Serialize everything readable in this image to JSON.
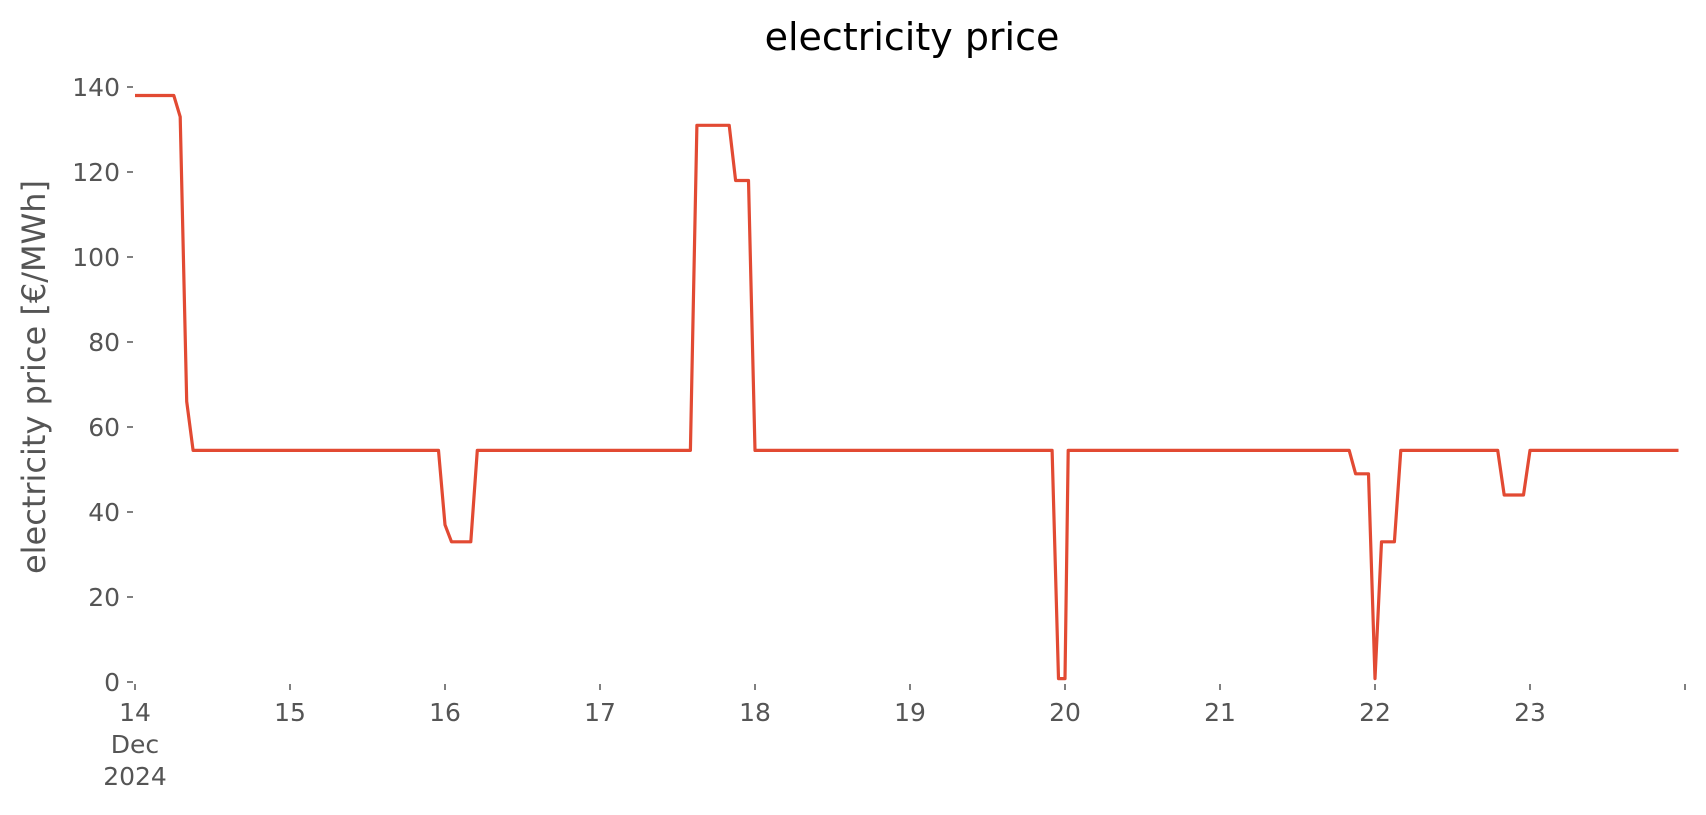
{
  "chart_data": {
    "type": "line",
    "title": "electricity price",
    "xlabel": "",
    "ylabel": "electricity price [€/MWh]",
    "xlim": [
      "2024-12-14 00:00",
      "2024-12-24 00:00"
    ],
    "ylim": [
      0,
      140
    ],
    "y_ticks": [
      0,
      20,
      40,
      60,
      80,
      100,
      120,
      140
    ],
    "x_tick_labels": [
      {
        "x": "2024-12-14 00:00",
        "lines": [
          "14",
          "Dec",
          "2024"
        ]
      },
      {
        "x": "2024-12-15 00:00",
        "lines": [
          "15"
        ]
      },
      {
        "x": "2024-12-16 00:00",
        "lines": [
          "16"
        ]
      },
      {
        "x": "2024-12-17 00:00",
        "lines": [
          "17"
        ]
      },
      {
        "x": "2024-12-18 00:00",
        "lines": [
          "18"
        ]
      },
      {
        "x": "2024-12-19 00:00",
        "lines": [
          "19"
        ]
      },
      {
        "x": "2024-12-20 00:00",
        "lines": [
          "20"
        ]
      },
      {
        "x": "2024-12-21 00:00",
        "lines": [
          "21"
        ]
      },
      {
        "x": "2024-12-22 00:00",
        "lines": [
          "22"
        ]
      },
      {
        "x": "2024-12-23 00:00",
        "lines": [
          "23"
        ]
      },
      {
        "x": "2024-12-24 00:00",
        "lines": [
          ""
        ]
      }
    ],
    "grid": false,
    "series": [
      {
        "color": "#E24A33",
        "points": [
          [
            "2024-12-14 00:00",
            138
          ],
          [
            "2024-12-14 06:00",
            138
          ],
          [
            "2024-12-14 07:00",
            133
          ],
          [
            "2024-12-14 08:00",
            66
          ],
          [
            "2024-12-14 09:00",
            54.5
          ],
          [
            "2024-12-15 23:00",
            54.5
          ],
          [
            "2024-12-16 00:00",
            37
          ],
          [
            "2024-12-16 01:00",
            33
          ],
          [
            "2024-12-16 04:00",
            33
          ],
          [
            "2024-12-16 05:00",
            54.5
          ],
          [
            "2024-12-17 14:00",
            54.5
          ],
          [
            "2024-12-17 15:00",
            131
          ],
          [
            "2024-12-17 20:00",
            131
          ],
          [
            "2024-12-17 21:00",
            118
          ],
          [
            "2024-12-17 23:00",
            118
          ],
          [
            "2024-12-18 00:00",
            54.5
          ],
          [
            "2024-12-19 22:00",
            54.5
          ],
          [
            "2024-12-19 23:00",
            0.8
          ],
          [
            "2024-12-20 00:00",
            0.8
          ],
          [
            "2024-12-20 00:30",
            54.5
          ],
          [
            "2024-12-21 20:00",
            54.5
          ],
          [
            "2024-12-21 21:00",
            49
          ],
          [
            "2024-12-21 23:00",
            49
          ],
          [
            "2024-12-22 00:00",
            0.8
          ],
          [
            "2024-12-22 01:00",
            33
          ],
          [
            "2024-12-22 03:00",
            33
          ],
          [
            "2024-12-22 04:00",
            54.5
          ],
          [
            "2024-12-22 19:00",
            54.5
          ],
          [
            "2024-12-22 20:00",
            44
          ],
          [
            "2024-12-22 23:00",
            44
          ],
          [
            "2024-12-23 00:00",
            54.5
          ],
          [
            "2024-12-23 23:00",
            54.5
          ]
        ]
      }
    ]
  }
}
